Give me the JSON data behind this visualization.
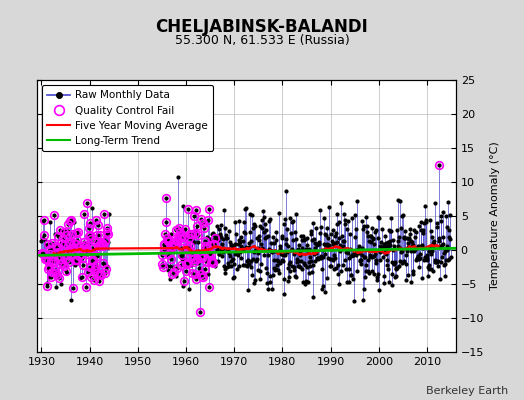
{
  "title": "CHELJABINSK-BALANDI",
  "subtitle": "55.300 N, 61.533 E (Russia)",
  "ylabel": "Temperature Anomaly (°C)",
  "watermark": "Berkeley Earth",
  "xlim": [
    1929,
    2016
  ],
  "ylim": [
    -15,
    25
  ],
  "yticks": [
    -15,
    -10,
    -5,
    0,
    5,
    10,
    15,
    20,
    25
  ],
  "xticks": [
    1930,
    1940,
    1950,
    1960,
    1970,
    1980,
    1990,
    2000,
    2010
  ],
  "bg_color": "#d8d8d8",
  "plot_bg_color": "#ffffff",
  "raw_color": "#4444cc",
  "dot_color": "#000000",
  "qc_color": "#ff00ff",
  "moving_avg_color": "#ff0000",
  "trend_color": "#00bb00",
  "gap_start": 1944,
  "gap_end": 1954,
  "seed": 42,
  "period1_start": 1930,
  "period1_end": 1943,
  "period2_start": 1955,
  "period2_end": 2014,
  "outlier_year": 2012.5,
  "outlier_value": 12.5,
  "noise_std": 2.8,
  "trend_slope": 0.012,
  "trend_intercept": -0.3,
  "ma_window": 60
}
